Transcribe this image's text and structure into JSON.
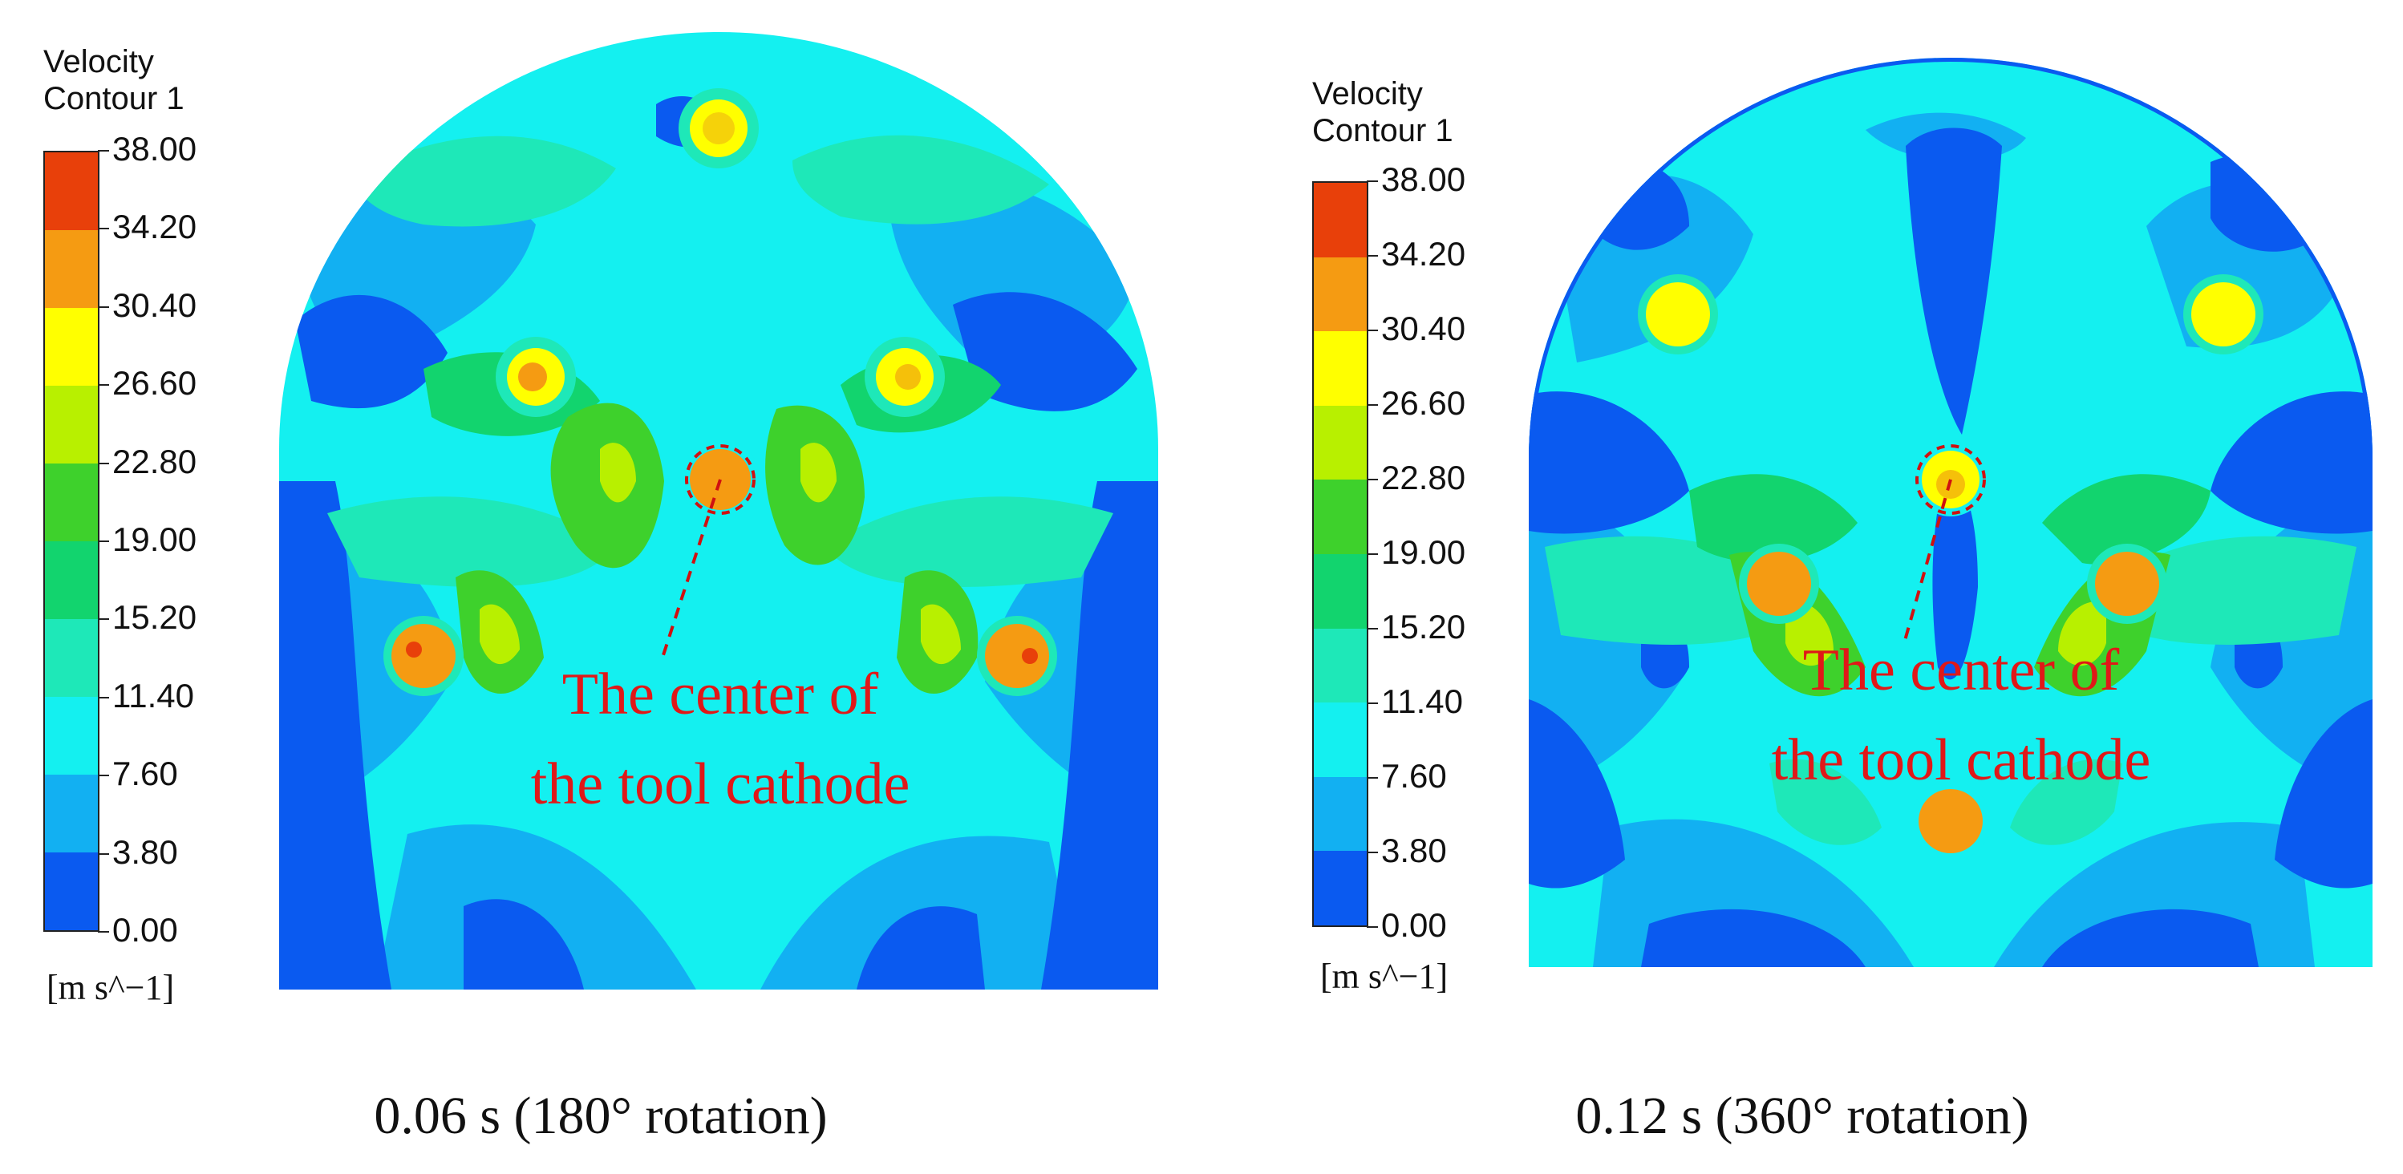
{
  "legend": {
    "title_line1": "Velocity",
    "title_line2": "Contour 1",
    "unit": "[m s^−1]",
    "ticks": [
      "38.00",
      "34.20",
      "30.40",
      "26.60",
      "22.80",
      "19.00",
      "15.20",
      "11.40",
      "7.60",
      "3.80",
      "0.00"
    ],
    "colors_top_to_bottom": [
      "#e8400a",
      "#f59b12",
      "#ffff00",
      "#b8f000",
      "#3ed12c",
      "#12d46e",
      "#1ee8b8",
      "#14f0f0",
      "#12b0f2",
      "#0a5af0"
    ]
  },
  "annotation": {
    "line1": "The center of",
    "line2": "the tool cathode"
  },
  "panels": [
    {
      "caption": "0.06 s (180° rotation)"
    },
    {
      "caption": "0.12 s (360° rotation)"
    }
  ]
}
